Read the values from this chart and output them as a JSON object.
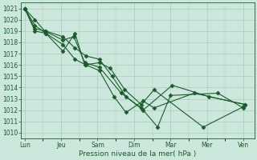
{
  "bg_color": "#cce8dd",
  "line_color": "#1a5c2a",
  "grid_color": "#aaccbb",
  "xlabel": "Pression niveau de la mer( hPa )",
  "ylim": [
    1009.5,
    1021.5
  ],
  "yticks": [
    1010,
    1011,
    1012,
    1013,
    1014,
    1015,
    1016,
    1017,
    1018,
    1019,
    1020,
    1021
  ],
  "xtick_labels": [
    "Lun",
    "Jeu",
    "Sam",
    "Dim",
    "Mar",
    "Mer",
    "Ven"
  ],
  "xtick_positions": [
    0,
    1,
    2,
    3,
    4,
    5,
    6
  ],
  "xlim": [
    -0.1,
    6.3
  ],
  "series": [
    [
      1021.0,
      1020.0,
      1019.0,
      1018.2,
      1018.5,
      1016.2,
      1015.8,
      1013.5,
      1012.2,
      1010.5,
      1013.3,
      1013.5,
      1012.2
    ],
    [
      1021.0,
      1019.5,
      1018.8,
      1017.2,
      1018.8,
      1016.0,
      1016.2,
      1015.7,
      1013.8,
      1012.5,
      1013.8,
      1010.5,
      1012.3
    ],
    [
      1021.0,
      1019.2,
      1019.0,
      1018.5,
      1017.5,
      1016.8,
      1016.5,
      1015.0,
      1013.2,
      1012.0,
      1014.2,
      1013.2,
      1012.5
    ],
    [
      1021.0,
      1019.0,
      1018.8,
      1017.8,
      1016.5,
      1016.0,
      1015.5,
      1013.2,
      1011.8,
      1012.8,
      1012.2,
      1013.5,
      1012.5
    ]
  ],
  "series_x": [
    [
      0.0,
      0.28,
      0.55,
      1.05,
      1.35,
      1.65,
      2.05,
      2.65,
      3.2,
      3.65,
      4.0,
      5.3,
      6.0
    ],
    [
      0.0,
      0.28,
      0.58,
      1.05,
      1.38,
      1.65,
      2.05,
      2.35,
      2.75,
      3.2,
      3.55,
      4.9,
      6.0
    ],
    [
      0.0,
      0.28,
      0.58,
      1.05,
      1.38,
      1.68,
      2.05,
      2.4,
      2.78,
      3.25,
      4.05,
      5.05,
      6.05
    ],
    [
      0.0,
      0.28,
      0.58,
      1.05,
      1.38,
      1.68,
      2.05,
      2.45,
      2.78,
      3.25,
      3.55,
      4.65,
      6.05
    ]
  ],
  "marker": "D",
  "markersize": 2.5,
  "linewidth": 0.8,
  "tick_fontsize": 5.5,
  "xlabel_fontsize": 6.5
}
